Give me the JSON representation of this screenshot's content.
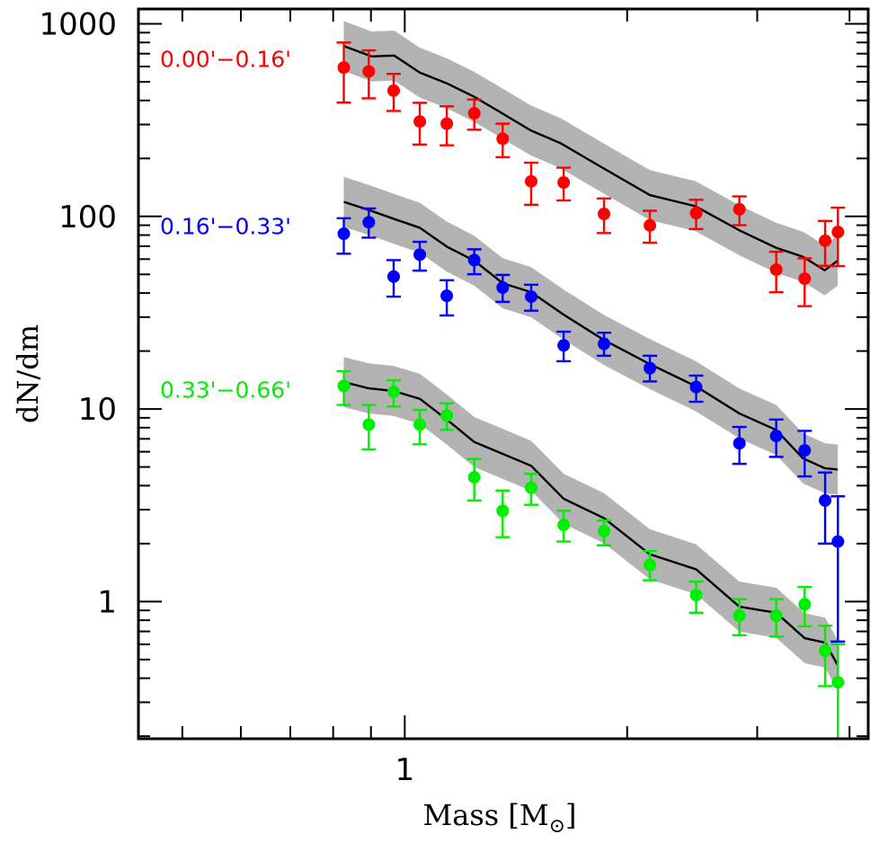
{
  "chart_data": {
    "type": "scatter",
    "title": "",
    "xlabel": "Mass [M⊙]",
    "xlabel_main": "Mass [M",
    "xlabel_sub": "⊙",
    "xlabel_close": "]",
    "ylabel": "dN/dm",
    "xscale": "log",
    "yscale": "log",
    "xlim": [
      0.436,
      4.24
    ],
    "ylim": [
      0.194,
      1194
    ],
    "x_major_ticks": [
      1
    ],
    "x_major_tick_labels": [
      "1"
    ],
    "x_minor_ticks": [
      0.5,
      0.6,
      0.7,
      0.8,
      0.9,
      2,
      3,
      4
    ],
    "y_major_ticks": [
      1,
      10,
      100,
      1000
    ],
    "y_major_tick_labels": [
      "1",
      "10",
      "100",
      "1000"
    ],
    "grid": false,
    "legend": "inline-left",
    "model_band_halfwidth_dex": 0.13,
    "band_color": "#b3b3b3",
    "model_line_color": "#000000",
    "series": [
      {
        "name": "0.00'−0.16'",
        "color": "#ff0000",
        "label_anchor_value": 650,
        "points": [
          {
            "x": 0.827,
            "y": 593,
            "ylo": 390,
            "yhi": 799
          },
          {
            "x": 0.894,
            "y": 566,
            "ylo": 410,
            "yhi": 728
          },
          {
            "x": 0.966,
            "y": 450,
            "ylo": 353,
            "yhi": 550
          },
          {
            "x": 1.048,
            "y": 311,
            "ylo": 236,
            "yhi": 389
          },
          {
            "x": 1.14,
            "y": 303,
            "ylo": 234,
            "yhi": 373
          },
          {
            "x": 1.242,
            "y": 343,
            "ylo": 282,
            "yhi": 404
          },
          {
            "x": 1.357,
            "y": 253,
            "ylo": 203,
            "yhi": 303
          },
          {
            "x": 1.483,
            "y": 152,
            "ylo": 115,
            "yhi": 190
          },
          {
            "x": 1.641,
            "y": 150,
            "ylo": 121,
            "yhi": 179
          },
          {
            "x": 1.861,
            "y": 103,
            "ylo": 82,
            "yhi": 124
          },
          {
            "x": 2.147,
            "y": 89.8,
            "ylo": 73,
            "yhi": 107
          },
          {
            "x": 2.48,
            "y": 104,
            "ylo": 86,
            "yhi": 122
          },
          {
            "x": 2.838,
            "y": 109,
            "ylo": 90,
            "yhi": 127
          },
          {
            "x": 3.183,
            "y": 52.9,
            "ylo": 40.4,
            "yhi": 65.6
          },
          {
            "x": 3.478,
            "y": 47.5,
            "ylo": 34.2,
            "yhi": 60.6
          },
          {
            "x": 3.707,
            "y": 74.8,
            "ylo": 55.4,
            "yhi": 94.8
          },
          {
            "x": 3.858,
            "y": 83.0,
            "ylo": 55.2,
            "yhi": 111
          }
        ],
        "model": {
          "x": [
            0.827,
            0.902,
            0.968,
            1.048,
            1.14,
            1.24,
            1.348,
            1.48,
            1.625,
            1.852,
            2.147,
            2.474,
            2.846,
            3.183,
            3.461,
            3.702,
            3.855
          ],
          "y": [
            767,
            677,
            684,
            558,
            491,
            419,
            347,
            280,
            240,
            179,
            129,
            113,
            84.2,
            68.7,
            61.7,
            52.5,
            58.9
          ]
        }
      },
      {
        "name": "0.16'−0.33'",
        "color": "#0000ff",
        "label_anchor_value": 88,
        "points": [
          {
            "x": 0.827,
            "y": 81.3,
            "ylo": 64.0,
            "yhi": 97.9
          },
          {
            "x": 0.894,
            "y": 93.2,
            "ylo": 77.6,
            "yhi": 110
          },
          {
            "x": 0.966,
            "y": 48.7,
            "ylo": 38.3,
            "yhi": 59.3
          },
          {
            "x": 1.048,
            "y": 63.3,
            "ylo": 52.3,
            "yhi": 73.8
          },
          {
            "x": 1.14,
            "y": 38.7,
            "ylo": 30.6,
            "yhi": 46.6
          },
          {
            "x": 1.242,
            "y": 59.3,
            "ylo": 50.1,
            "yhi": 67.5
          },
          {
            "x": 1.357,
            "y": 42.7,
            "ylo": 36.0,
            "yhi": 49.7
          },
          {
            "x": 1.483,
            "y": 38.3,
            "ylo": 32.4,
            "yhi": 44.2
          },
          {
            "x": 1.641,
            "y": 21.4,
            "ylo": 17.7,
            "yhi": 25.2
          },
          {
            "x": 1.861,
            "y": 21.8,
            "ylo": 18.9,
            "yhi": 24.9
          },
          {
            "x": 2.147,
            "y": 16.3,
            "ylo": 13.9,
            "yhi": 18.9
          },
          {
            "x": 2.48,
            "y": 13.0,
            "ylo": 10.9,
            "yhi": 14.9
          },
          {
            "x": 2.838,
            "y": 6.63,
            "ylo": 5.19,
            "yhi": 8.07
          },
          {
            "x": 3.183,
            "y": 7.25,
            "ylo": 5.64,
            "yhi": 8.82
          },
          {
            "x": 3.478,
            "y": 6.1,
            "ylo": 4.47,
            "yhi": 7.7
          },
          {
            "x": 3.707,
            "y": 3.35,
            "ylo": 2.0,
            "yhi": 4.68
          },
          {
            "x": 3.858,
            "y": 2.05,
            "ylo": 0.62,
            "yhi": 3.52
          }
        ],
        "model": {
          "x": [
            0.827,
            0.894,
            0.966,
            1.048,
            1.14,
            1.242,
            1.357,
            1.483,
            1.641,
            1.861,
            2.147,
            2.48,
            2.838,
            3.183,
            3.461,
            3.707,
            3.855
          ],
          "y": [
            119,
            108,
            97.2,
            87.3,
            69.7,
            58.9,
            45.0,
            40.4,
            30.9,
            22.8,
            17.1,
            13.1,
            9.48,
            7.78,
            5.54,
            4.92,
            4.85
          ]
        }
      },
      {
        "name": "0.33'−0.66'",
        "color": "#00ee00",
        "label_anchor_value": 12.5,
        "points": [
          {
            "x": 0.827,
            "y": 13.2,
            "ylo": 10.5,
            "yhi": 15.7
          },
          {
            "x": 0.894,
            "y": 8.3,
            "ylo": 6.17,
            "yhi": 10.5
          },
          {
            "x": 0.966,
            "y": 12.3,
            "ylo": 10.3,
            "yhi": 14.1
          },
          {
            "x": 1.048,
            "y": 8.3,
            "ylo": 6.56,
            "yhi": 9.89
          },
          {
            "x": 1.14,
            "y": 9.25,
            "ylo": 7.79,
            "yhi": 10.7
          },
          {
            "x": 1.242,
            "y": 4.42,
            "ylo": 3.35,
            "yhi": 5.5
          },
          {
            "x": 1.357,
            "y": 2.96,
            "ylo": 2.16,
            "yhi": 3.77
          },
          {
            "x": 1.483,
            "y": 3.9,
            "ylo": 3.18,
            "yhi": 4.6
          },
          {
            "x": 1.641,
            "y": 2.5,
            "ylo": 2.05,
            "yhi": 2.96
          },
          {
            "x": 1.861,
            "y": 2.32,
            "ylo": 1.96,
            "yhi": 2.64
          },
          {
            "x": 2.147,
            "y": 1.55,
            "ylo": 1.29,
            "yhi": 1.83
          },
          {
            "x": 2.48,
            "y": 1.08,
            "ylo": 0.875,
            "yhi": 1.27
          },
          {
            "x": 2.838,
            "y": 0.845,
            "ylo": 0.669,
            "yhi": 1.03
          },
          {
            "x": 3.183,
            "y": 0.845,
            "ylo": 0.658,
            "yhi": 1.03
          },
          {
            "x": 3.478,
            "y": 0.968,
            "ylo": 0.745,
            "yhi": 1.19
          },
          {
            "x": 3.707,
            "y": 0.556,
            "ylo": 0.364,
            "yhi": 0.75
          },
          {
            "x": 3.858,
            "y": 0.381,
            "ylo": 0.19,
            "yhi": 0.601
          }
        ],
        "model": {
          "x": [
            0.827,
            0.894,
            0.966,
            1.048,
            1.14,
            1.242,
            1.357,
            1.483,
            1.641,
            1.861,
            2.147,
            2.48,
            2.838,
            3.183,
            3.478,
            3.707,
            3.855
          ],
          "y": [
            13.8,
            12.8,
            12.4,
            11.3,
            8.82,
            6.74,
            5.85,
            5.07,
            3.42,
            2.71,
            1.76,
            1.47,
            0.941,
            0.875,
            0.646,
            0.612,
            0.468
          ]
        }
      }
    ]
  }
}
